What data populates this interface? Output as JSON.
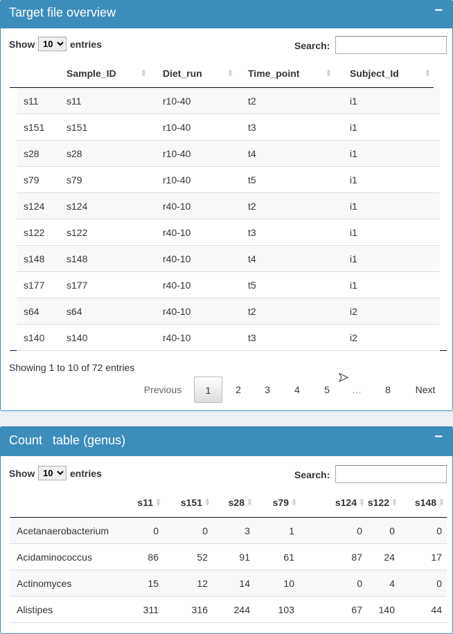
{
  "box1": {
    "title": "Target file overview",
    "collapse": "−",
    "show": "Show",
    "length": "10",
    "entries": "entries",
    "search_label": "Search:",
    "search_value": "",
    "columns": [
      "",
      "Sample_ID",
      "Diet_run",
      "Time_point",
      "Subject_Id"
    ],
    "rows": [
      [
        "s11",
        "s11",
        "r10-40",
        "t2",
        "i1"
      ],
      [
        "s151",
        "s151",
        "r10-40",
        "t3",
        "i1"
      ],
      [
        "s28",
        "s28",
        "r10-40",
        "t4",
        "i1"
      ],
      [
        "s79",
        "s79",
        "r10-40",
        "t5",
        "i1"
      ],
      [
        "s124",
        "s124",
        "r40-10",
        "t2",
        "i1"
      ],
      [
        "s122",
        "s122",
        "r40-10",
        "t3",
        "i1"
      ],
      [
        "s148",
        "s148",
        "r40-10",
        "t4",
        "i1"
      ],
      [
        "s177",
        "s177",
        "r40-10",
        "t5",
        "i1"
      ],
      [
        "s64",
        "s64",
        "r40-10",
        "t2",
        "i2"
      ],
      [
        "s140",
        "s140",
        "r40-10",
        "t3",
        "i2"
      ]
    ],
    "info": "Showing 1 to 10 of 72 entries",
    "pagination": {
      "previous": "Previous",
      "pages": [
        "1",
        "2",
        "3",
        "4",
        "5",
        "…",
        "8"
      ],
      "current": "1",
      "next": "Next"
    }
  },
  "box2": {
    "title": "Count   table (genus)",
    "collapse": "−",
    "show": "Show",
    "length": "10",
    "entries": "entries",
    "search_label": "Search:",
    "search_value": "",
    "columns": [
      "",
      "s11",
      "s151",
      "s28",
      "s79",
      "s124",
      "s122",
      "s148"
    ],
    "rows": [
      [
        "Acetanaerobacterium",
        "0",
        "0",
        "3",
        "1",
        "0",
        "0",
        "0"
      ],
      [
        "Acidaminococcus",
        "86",
        "52",
        "91",
        "61",
        "87",
        "24",
        "17"
      ],
      [
        "Actinomyces",
        "15",
        "12",
        "14",
        "10",
        "0",
        "4",
        "0"
      ],
      [
        "Alistipes",
        "311",
        "316",
        "244",
        "103",
        "67",
        "140",
        "44"
      ]
    ]
  },
  "colors": {
    "header": "#3c8dbc",
    "background": "#ecf0f5"
  }
}
